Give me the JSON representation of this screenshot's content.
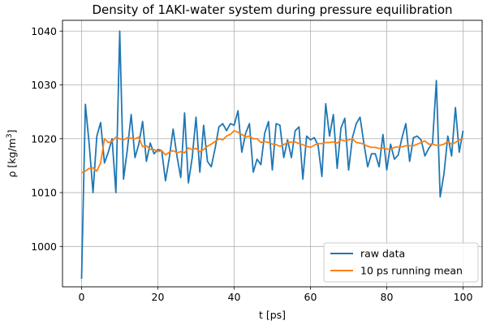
{
  "chart_data": {
    "type": "line",
    "title": "Density of 1AKI-water system during pressure equilibration",
    "xlabel": "t [ps]",
    "ylabel_parts": {
      "base": "ρ [kg/m",
      "sup": "3",
      "end": "]"
    },
    "xlim": [
      -5,
      105
    ],
    "ylim": [
      992.5,
      1042
    ],
    "xticks": [
      0,
      20,
      40,
      60,
      80,
      100
    ],
    "yticks": [
      1000,
      1010,
      1020,
      1030,
      1040
    ],
    "grid": true,
    "legend_position": "lower-right",
    "x": [
      0,
      1,
      2,
      3,
      4,
      5,
      6,
      7,
      8,
      9,
      10,
      11,
      12,
      13,
      14,
      15,
      16,
      17,
      18,
      19,
      20,
      21,
      22,
      23,
      24,
      25,
      26,
      27,
      28,
      29,
      30,
      31,
      32,
      33,
      34,
      35,
      36,
      37,
      38,
      39,
      40,
      41,
      42,
      43,
      44,
      45,
      46,
      47,
      48,
      49,
      50,
      51,
      52,
      53,
      54,
      55,
      56,
      57,
      58,
      59,
      60,
      61,
      62,
      63,
      64,
      65,
      66,
      67,
      68,
      69,
      70,
      71,
      72,
      73,
      74,
      75,
      76,
      77,
      78,
      79,
      80,
      81,
      82,
      83,
      84,
      85,
      86,
      87,
      88,
      89,
      90,
      91,
      92,
      93,
      94,
      95,
      96,
      97,
      98,
      99,
      100
    ],
    "series": [
      {
        "name": "raw data",
        "color": "#1f77b4",
        "values": [
          994.0,
          1026.4,
          1019.0,
          1010.0,
          1020.5,
          1023.0,
          1015.5,
          1017.5,
          1020.0,
          1010.0,
          1040.0,
          1012.5,
          1018.0,
          1024.5,
          1016.5,
          1019.0,
          1023.2,
          1015.8,
          1019.2,
          1017.2,
          1018.0,
          1017.8,
          1012.2,
          1016.5,
          1021.8,
          1016.8,
          1012.8,
          1024.8,
          1011.8,
          1016.5,
          1024.0,
          1013.8,
          1022.5,
          1015.8,
          1014.8,
          1018.2,
          1022.2,
          1022.8,
          1021.5,
          1022.8,
          1022.5,
          1025.2,
          1017.5,
          1021.0,
          1022.8,
          1013.8,
          1016.2,
          1015.2,
          1021.0,
          1023.2,
          1014.2,
          1022.8,
          1022.5,
          1016.5,
          1019.8,
          1016.5,
          1021.5,
          1022.2,
          1012.5,
          1020.5,
          1019.8,
          1020.2,
          1018.8,
          1013.0,
          1026.5,
          1020.5,
          1024.5,
          1014.5,
          1022.0,
          1023.8,
          1014.2,
          1020.2,
          1022.8,
          1024.0,
          1019.2,
          1014.8,
          1017.2,
          1017.2,
          1014.8,
          1020.8,
          1014.2,
          1019.0,
          1016.2,
          1017.0,
          1020.2,
          1022.8,
          1015.8,
          1020.2,
          1020.5,
          1019.8,
          1016.8,
          1018.2,
          1019.2,
          1030.8,
          1009.2,
          1013.5,
          1020.5,
          1016.8,
          1025.8,
          1017.5,
          1021.5
        ]
      },
      {
        "name": "10 ps running mean",
        "color": "#ff7f0e",
        "values": [
          1013.7,
          1014.0,
          1014.5,
          1014.6,
          1014.0,
          1015.5,
          1020.0,
          1019.3,
          1019.5,
          1020.3,
          1020.0,
          1019.8,
          1020.2,
          1020.1,
          1020.0,
          1020.3,
          1018.5,
          1018.7,
          1018.0,
          1018.0,
          1017.6,
          1017.8,
          1017.0,
          1017.5,
          1017.8,
          1017.4,
          1017.6,
          1017.4,
          1018.3,
          1018.0,
          1018.2,
          1017.6,
          1018.0,
          1018.6,
          1019.0,
          1019.5,
          1020.0,
          1019.8,
          1020.5,
          1020.8,
          1021.5,
          1021.2,
          1020.8,
          1020.3,
          1020.5,
          1020.0,
          1020.0,
          1019.3,
          1019.5,
          1019.3,
          1019.0,
          1018.9,
          1018.6,
          1018.9,
          1019.3,
          1019.4,
          1019.4,
          1019.1,
          1018.9,
          1018.6,
          1018.4,
          1018.8,
          1019.1,
          1019.1,
          1019.3,
          1019.3,
          1019.4,
          1019.2,
          1019.8,
          1019.6,
          1019.8,
          1020.0,
          1019.3,
          1019.2,
          1019.0,
          1018.6,
          1018.4,
          1018.4,
          1018.2,
          1018.3,
          1018.1,
          1018.0,
          1018.4,
          1018.5,
          1018.5,
          1018.7,
          1018.7,
          1018.7,
          1019.0,
          1019.3,
          1019.6,
          1019.0,
          1019.0,
          1018.8,
          1018.8,
          1019.0,
          1019.5,
          1019.0,
          1019.3,
          1019.8,
          1020.0
        ]
      }
    ]
  }
}
